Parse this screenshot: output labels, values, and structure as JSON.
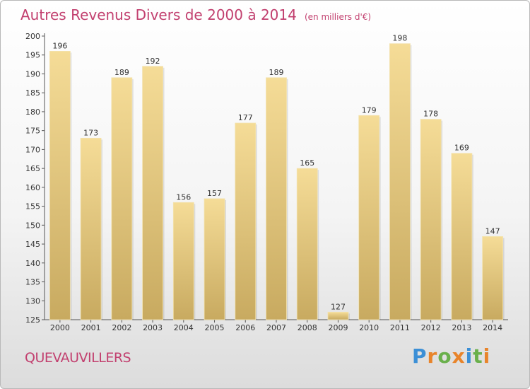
{
  "header": {
    "title": "Autres Revenus Divers de 2000 à 2014",
    "unit_note": "(en milliers d'€)"
  },
  "footer": {
    "commune": "QUEVAUVILLERS",
    "logo_text": "Proxiti"
  },
  "colors": {
    "title": "#c2406f",
    "bar_light": "#f5dc97",
    "bar_dark": "#c8aa60",
    "logo": [
      "#3b8fd6",
      "#e8842a",
      "#6ab04c",
      "#e8842a",
      "#3b8fd6",
      "#6ab04c",
      "#e8842a"
    ]
  },
  "chart_data": {
    "type": "bar",
    "title": "Autres Revenus Divers de 2000 à 2014",
    "ylabel": "",
    "xlabel": "",
    "categories": [
      "2000",
      "2001",
      "2002",
      "2003",
      "2004",
      "2005",
      "2006",
      "2007",
      "2008",
      "2009",
      "2010",
      "2011",
      "2012",
      "2013",
      "2014"
    ],
    "values": [
      196,
      173,
      189,
      192,
      156,
      157,
      177,
      189,
      165,
      127,
      179,
      198,
      178,
      169,
      147
    ],
    "ylim": [
      125,
      200
    ],
    "yticks": [
      125,
      130,
      135,
      140,
      145,
      150,
      155,
      160,
      165,
      170,
      175,
      180,
      185,
      190,
      195,
      200
    ],
    "grid": false,
    "data_labels": true
  }
}
